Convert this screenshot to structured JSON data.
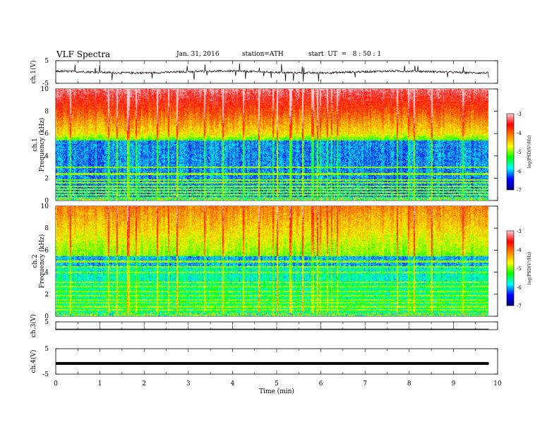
{
  "header": {
    "title": "VLF Spectra",
    "date": "Jan. 31, 2016",
    "station": "station=ATH",
    "start": "start  UT  =   8 : 50 : 1"
  },
  "chart_data": [
    {
      "type": "line",
      "ylabel": "ch.1(V)",
      "ylim": [
        -5,
        5
      ],
      "yticks": [
        "5",
        "-5"
      ],
      "note": "noisy waveform near 0 V"
    },
    {
      "type": "heatmap",
      "ylabel": "ch.1\nFrequency (kHz)",
      "ylim": [
        0,
        10
      ],
      "yticks": [
        "0",
        "2",
        "4",
        "6",
        "8",
        "10"
      ],
      "colorbar": {
        "label": "log(PSD(V²/Hz)",
        "range": [
          -7,
          -3
        ],
        "ticks": [
          "-3",
          "-4",
          "-5",
          "-6",
          "-7"
        ]
      }
    },
    {
      "type": "heatmap",
      "ylabel": "ch.2\nFrequency (kHz)",
      "ylim": [
        0,
        10
      ],
      "yticks": [
        "0",
        "2",
        "4",
        "6",
        "8",
        "10"
      ],
      "colorbar": {
        "label": "log(PSD(V²/Hz)",
        "range": [
          -7,
          -3
        ],
        "ticks": [
          "-3",
          "-4",
          "-5",
          "-6",
          "-7"
        ]
      }
    },
    {
      "type": "line",
      "ylabel": "ch.3(V)",
      "ylim": [
        -5,
        5
      ],
      "yticks": [
        "5"
      ],
      "note": "flat trace"
    },
    {
      "type": "line",
      "ylabel": "ch.4(V)",
      "ylim": [
        -5,
        5
      ],
      "yticks": [
        "5",
        "-5"
      ],
      "note": "flat thick trace near -1 V"
    }
  ],
  "xaxis": {
    "label": "Time  (min)",
    "range": [
      0,
      10
    ],
    "ticks": [
      "0",
      "1",
      "2",
      "3",
      "4",
      "5",
      "6",
      "7",
      "8",
      "9",
      "10"
    ]
  },
  "colors": [
    "#000080",
    "#0000ff",
    "#00ffff",
    "#00ff00",
    "#ffff00",
    "#ff8000",
    "#ff0000",
    "#ffd0d0"
  ]
}
